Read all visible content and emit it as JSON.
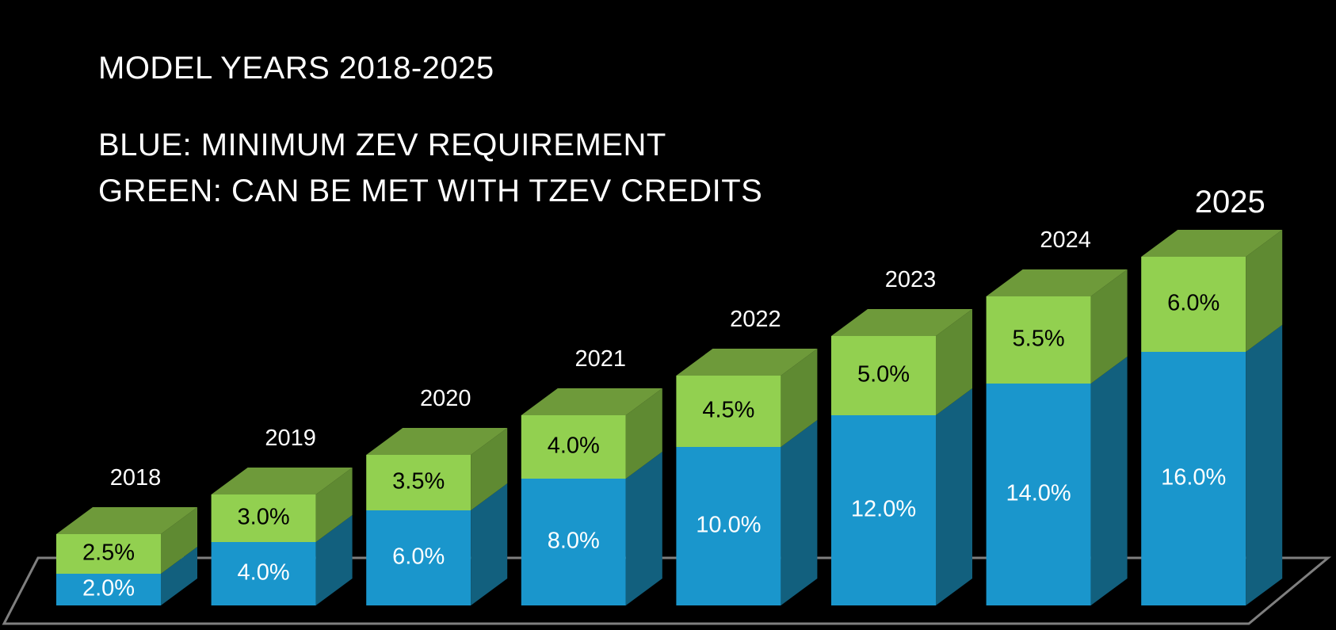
{
  "caption": {
    "title": "MODEL YEARS 2018-2025",
    "legend_blue": "BLUE: MINIMUM ZEV REQUIREMENT",
    "legend_green": "GREEN: CAN BE MET WITH TZEV CREDITS"
  },
  "chart_data": {
    "type": "bar",
    "stacked": true,
    "style": "3d",
    "categories": [
      "2018",
      "2019",
      "2020",
      "2021",
      "2022",
      "2023",
      "2024",
      "2025"
    ],
    "series": [
      {
        "values": [
          2.0,
          4.0,
          6.0,
          8.0,
          10.0,
          12.0,
          14.0,
          16.0
        ],
        "labels": [
          "2.0%",
          "4.0%",
          "6.0%",
          "8.0%",
          "10.0%",
          "12.0%",
          "14.0%",
          "16.0%"
        ],
        "color": "#1a96cc",
        "side_color": "#12607e",
        "label_color": "#ffffff"
      },
      {
        "values": [
          2.5,
          3.0,
          3.5,
          4.0,
          4.5,
          5.0,
          5.5,
          6.0
        ],
        "labels": [
          "2.5%",
          "3.0%",
          "3.5%",
          "4.0%",
          "4.5%",
          "5.0%",
          "5.5%",
          "6.0%"
        ],
        "color": "#92d050",
        "side_color": "#5f8a32",
        "top_color": "#6e9a3a",
        "label_color": "#000000"
      }
    ],
    "ylim": [
      0,
      22
    ],
    "grid": false,
    "legend": "top-left text"
  }
}
